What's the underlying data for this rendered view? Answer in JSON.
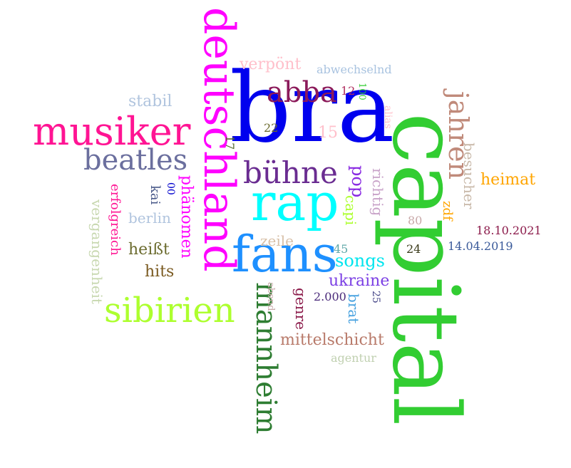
{
  "words": [
    {
      "text": "bra",
      "color": "#0000ee"
    },
    {
      "text": "capital",
      "color": "#32cd32"
    },
    {
      "text": "deutschland",
      "color": "#ff00ff"
    },
    {
      "text": "rap",
      "color": "#00ffff"
    },
    {
      "text": "fans",
      "color": "#1e90ff"
    },
    {
      "text": "musiker",
      "color": "#ff1493"
    },
    {
      "text": "sibirien",
      "color": "#adff2f"
    },
    {
      "text": "mannheim",
      "color": "#2e7d32"
    },
    {
      "text": "abba",
      "color": "#8b1a5a"
    },
    {
      "text": "bühne",
      "color": "#6a2c91"
    },
    {
      "text": "beatles",
      "color": "#6b6f9e"
    },
    {
      "text": "jahren",
      "color": "#c08a7a"
    },
    {
      "text": "verpönt",
      "color": "#ffc0cb"
    },
    {
      "text": "abwechselnd",
      "color": "#a9c3e0"
    },
    {
      "text": "stabil",
      "color": "#b0c4de"
    },
    {
      "text": "phänomen",
      "color": "#ff00ff"
    },
    {
      "text": "erfolgreich",
      "color": "#ff1493"
    },
    {
      "text": "kai",
      "color": "#4a5a8a"
    },
    {
      "text": "berlin",
      "color": "#b0c4de"
    },
    {
      "text": "vergangenheit",
      "color": "#c8d8b0"
    },
    {
      "text": "heißt",
      "color": "#6b6b2e"
    },
    {
      "text": "hits",
      "color": "#7a5a20"
    },
    {
      "text": "songs",
      "color": "#00e5ee"
    },
    {
      "text": "ukraine",
      "color": "#7b3fe4"
    },
    {
      "text": "mittelschicht",
      "color": "#b87a6a"
    },
    {
      "text": "agentur",
      "color": "#c0d0b0"
    },
    {
      "text": "heimat",
      "color": "#ffa500"
    },
    {
      "text": "pop",
      "color": "#8a2be2"
    },
    {
      "text": "capi",
      "color": "#adff2f"
    },
    {
      "text": "richtig",
      "color": "#c8a2c8"
    },
    {
      "text": "besucher",
      "color": "#c8b8a8"
    },
    {
      "text": "zdf",
      "color": "#ffa500"
    },
    {
      "text": "zeile",
      "color": "#d8c0a8"
    },
    {
      "text": "genre",
      "color": "#8b1a4a"
    },
    {
      "text": "brat",
      "color": "#4aa3e0"
    },
    {
      "text": "alias",
      "color": "#ffc0cb"
    },
    {
      "text": "abend",
      "color": "#c8a8a8"
    },
    {
      "text": "15",
      "color": "#ffc0cb"
    },
    {
      "text": "22",
      "color": "#6b6b2e"
    },
    {
      "text": "17",
      "color": "#556b2f"
    },
    {
      "text": "12",
      "color": "#b03060"
    },
    {
      "text": "100",
      "color": "#32cd32"
    },
    {
      "text": "00",
      "color": "#0000cd"
    },
    {
      "text": "80",
      "color": "#c8a8a8"
    },
    {
      "text": "24",
      "color": "#3a3a1a"
    },
    {
      "text": "45",
      "color": "#5fa8a8"
    },
    {
      "text": "25",
      "color": "#4a4a8a"
    },
    {
      "text": "2.000",
      "color": "#4a2a7a"
    },
    {
      "text": "18.10.2021",
      "color": "#8b1a4a"
    },
    {
      "text": "14.04.2019",
      "color": "#3a5a9a"
    }
  ]
}
